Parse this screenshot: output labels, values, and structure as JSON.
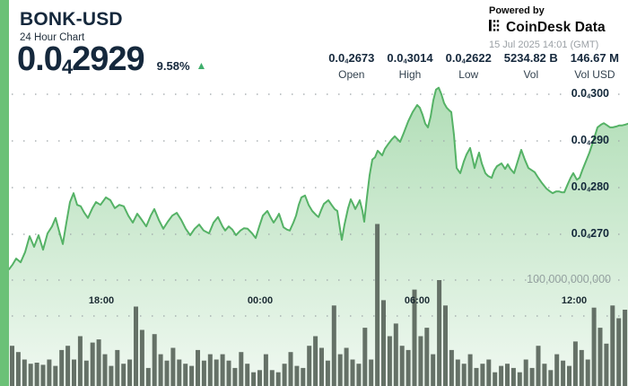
{
  "header": {
    "symbol": "BONK-USD",
    "subtitle": "24 Hour Chart",
    "price": {
      "pre": "0.0",
      "sub": "4",
      "post": "2929"
    },
    "change_percent": "9.58%",
    "change_direction": "up",
    "stats": [
      {
        "value": {
          "pre": "0.0",
          "sub": "4",
          "post": "2673"
        },
        "label": "Open"
      },
      {
        "value": {
          "pre": "0.0",
          "sub": "4",
          "post": "3014"
        },
        "label": "High"
      },
      {
        "value": {
          "pre": "0.0",
          "sub": "4",
          "post": "2622"
        },
        "label": "Low"
      },
      {
        "value": {
          "pre": "5234.82 B"
        },
        "label": "Vol"
      },
      {
        "value": {
          "pre": "146.67 M"
        },
        "label": "Vol USD"
      }
    ],
    "powered_by": {
      "line1": "Powered by",
      "brand": "CoinDesk Data",
      "timestamp": "15 Jul 2025 14:01 (GMT)"
    }
  },
  "colors": {
    "accent_strip": "#6BC177",
    "line": "#55B266",
    "fill": "#67BE72",
    "volume_bar": "#5A665C",
    "grid_dot": "#9FA8AA",
    "text_dark": "#15283C",
    "text_gray": "#93A09F",
    "triangle_up": "#3FAE6C"
  },
  "chart_data": {
    "type": "area",
    "title": "BONK-USD 24 Hour Chart",
    "legend": [],
    "grid": "dotted horizontal",
    "x_axis": {
      "ticks": [
        "18:00",
        "00:00",
        "06:00",
        "12:00"
      ]
    },
    "y_axis": {
      "unit": "price shown as 0.0(4)XXX USD",
      "ticks": [
        {
          "label": {
            "pre": "0.0",
            "sub": "4",
            "post": "300"
          },
          "value": 300
        },
        {
          "label": {
            "pre": "0.0",
            "sub": "4",
            "post": "290"
          },
          "value": 290
        },
        {
          "label": {
            "pre": "0.0",
            "sub": "4",
            "post": "280"
          },
          "value": 280
        },
        {
          "label": {
            "pre": "0.0",
            "sub": "4",
            "post": "270"
          },
          "value": 270
        }
      ]
    },
    "volume_axis_label": "100,000,000,000",
    "price_points": [
      [
        0,
        263.8
      ],
      [
        6,
        262.9
      ],
      [
        10,
        262.5
      ],
      [
        14,
        263.5
      ],
      [
        18,
        264.8
      ],
      [
        23,
        264.0
      ],
      [
        28,
        266.2
      ],
      [
        33,
        269.6
      ],
      [
        38,
        267.3
      ],
      [
        43,
        269.8
      ],
      [
        48,
        266.7
      ],
      [
        53,
        270.2
      ],
      [
        58,
        271.7
      ],
      [
        62,
        273.5
      ],
      [
        66,
        270.6
      ],
      [
        70,
        267.9
      ],
      [
        74,
        272.5
      ],
      [
        78,
        276.9
      ],
      [
        82,
        278.8
      ],
      [
        86,
        276.3
      ],
      [
        90,
        276.0
      ],
      [
        94,
        274.6
      ],
      [
        98,
        273.5
      ],
      [
        103,
        275.6
      ],
      [
        107,
        276.9
      ],
      [
        112,
        276.3
      ],
      [
        118,
        277.9
      ],
      [
        123,
        277.3
      ],
      [
        128,
        275.6
      ],
      [
        133,
        276.3
      ],
      [
        138,
        276.0
      ],
      [
        143,
        274.0
      ],
      [
        148,
        272.5
      ],
      [
        153,
        274.4
      ],
      [
        158,
        273.1
      ],
      [
        163,
        271.7
      ],
      [
        168,
        274.0
      ],
      [
        172,
        275.4
      ],
      [
        177,
        273.1
      ],
      [
        182,
        271.2
      ],
      [
        187,
        272.7
      ],
      [
        192,
        274.0
      ],
      [
        197,
        274.6
      ],
      [
        202,
        273.1
      ],
      [
        207,
        271.2
      ],
      [
        212,
        269.8
      ],
      [
        217,
        271.2
      ],
      [
        222,
        272.1
      ],
      [
        227,
        270.8
      ],
      [
        233,
        270.2
      ],
      [
        238,
        272.5
      ],
      [
        243,
        273.7
      ],
      [
        248,
        271.7
      ],
      [
        251,
        270.8
      ],
      [
        255,
        271.7
      ],
      [
        259,
        271.0
      ],
      [
        263,
        269.8
      ],
      [
        268,
        270.8
      ],
      [
        272,
        271.3
      ],
      [
        276,
        271.2
      ],
      [
        281,
        270.2
      ],
      [
        285,
        269.2
      ],
      [
        289,
        271.7
      ],
      [
        293,
        274.0
      ],
      [
        298,
        275.0
      ],
      [
        302,
        273.5
      ],
      [
        305,
        272.5
      ],
      [
        309,
        273.7
      ],
      [
        311,
        274.4
      ],
      [
        314,
        272.7
      ],
      [
        316,
        271.5
      ],
      [
        320,
        271.0
      ],
      [
        323,
        270.8
      ],
      [
        327,
        272.5
      ],
      [
        330,
        274.0
      ],
      [
        333,
        276.3
      ],
      [
        336,
        277.9
      ],
      [
        340,
        278.3
      ],
      [
        344,
        276.3
      ],
      [
        348,
        275.0
      ],
      [
        352,
        274.2
      ],
      [
        355,
        273.7
      ],
      [
        358,
        275.2
      ],
      [
        361,
        276.5
      ],
      [
        366,
        277.3
      ],
      [
        370,
        276.2
      ],
      [
        373,
        275.4
      ],
      [
        376,
        275.0
      ],
      [
        379,
        271.2
      ],
      [
        381,
        268.8
      ],
      [
        384,
        272.1
      ],
      [
        388,
        275.6
      ],
      [
        391,
        277.5
      ],
      [
        394,
        276.3
      ],
      [
        396,
        275.4
      ],
      [
        399,
        276.5
      ],
      [
        401,
        277.3
      ],
      [
        404,
        275.0
      ],
      [
        406,
        272.7
      ],
      [
        409,
        277.9
      ],
      [
        412,
        282.7
      ],
      [
        415,
        286.0
      ],
      [
        418,
        286.5
      ],
      [
        421,
        287.9
      ],
      [
        424,
        287.3
      ],
      [
        426,
        286.9
      ],
      [
        429,
        288.3
      ],
      [
        433,
        289.4
      ],
      [
        437,
        290.4
      ],
      [
        440,
        291.0
      ],
      [
        443,
        290.4
      ],
      [
        446,
        289.8
      ],
      [
        450,
        291.7
      ],
      [
        455,
        294.2
      ],
      [
        460,
        296.2
      ],
      [
        465,
        297.7
      ],
      [
        468,
        297.1
      ],
      [
        471,
        295.6
      ],
      [
        474,
        293.7
      ],
      [
        477,
        292.9
      ],
      [
        480,
        295.2
      ],
      [
        483,
        298.7
      ],
      [
        486,
        301.0
      ],
      [
        489,
        301.4
      ],
      [
        492,
        300.0
      ],
      [
        495,
        298.1
      ],
      [
        498,
        297.1
      ],
      [
        501,
        296.5
      ],
      [
        503,
        296.2
      ],
      [
        506,
        291.3
      ],
      [
        509,
        284.2
      ],
      [
        513,
        283.1
      ],
      [
        517,
        285.6
      ],
      [
        520,
        287.1
      ],
      [
        524,
        288.5
      ],
      [
        527,
        286.0
      ],
      [
        529,
        284.2
      ],
      [
        532,
        286.3
      ],
      [
        534,
        287.5
      ],
      [
        537,
        285.2
      ],
      [
        541,
        283.1
      ],
      [
        544,
        282.5
      ],
      [
        548,
        282.1
      ],
      [
        551,
        283.7
      ],
      [
        554,
        284.6
      ],
      [
        559,
        285.2
      ],
      [
        563,
        284.0
      ],
      [
        566,
        285.0
      ],
      [
        569,
        284.0
      ],
      [
        573,
        283.1
      ],
      [
        577,
        285.6
      ],
      [
        581,
        288.1
      ],
      [
        585,
        286.0
      ],
      [
        589,
        284.2
      ],
      [
        593,
        283.7
      ],
      [
        596,
        283.3
      ],
      [
        600,
        282.1
      ],
      [
        604,
        281.0
      ],
      [
        609,
        279.8
      ],
      [
        613,
        279.2
      ],
      [
        616,
        278.8
      ],
      [
        620,
        279.2
      ],
      [
        623,
        279.2
      ],
      [
        626,
        279.0
      ],
      [
        629,
        279.0
      ],
      [
        633,
        280.8
      ],
      [
        636,
        282.1
      ],
      [
        639,
        283.1
      ],
      [
        643,
        281.7
      ],
      [
        646,
        282.1
      ],
      [
        649,
        283.7
      ],
      [
        653,
        285.6
      ],
      [
        657,
        287.5
      ],
      [
        661,
        289.8
      ],
      [
        666,
        292.9
      ],
      [
        670,
        293.5
      ],
      [
        673,
        293.8
      ],
      [
        677,
        293.3
      ],
      [
        680,
        292.9
      ],
      [
        683,
        292.9
      ],
      [
        687,
        293.1
      ],
      [
        690,
        293.3
      ],
      [
        693,
        293.3
      ],
      [
        697,
        293.5
      ],
      [
        700,
        293.7
      ]
    ],
    "volume_bars_billions": [
      38,
      32,
      25,
      21,
      22,
      20,
      25,
      19,
      34,
      38,
      25,
      47,
      24,
      41,
      44,
      30,
      19,
      34,
      21,
      25,
      75,
      53,
      17,
      49,
      30,
      24,
      36,
      25,
      21,
      19,
      34,
      24,
      30,
      25,
      30,
      24,
      17,
      32,
      21,
      13,
      15,
      30,
      15,
      13,
      21,
      32,
      19,
      17,
      38,
      47,
      36,
      24,
      76,
      30,
      36,
      25,
      21,
      55,
      25,
      153,
      81,
      47,
      59,
      38,
      34,
      91,
      47,
      55,
      30,
      100,
      76,
      34,
      25,
      21,
      30,
      17,
      21,
      25,
      13,
      19,
      21,
      17,
      13,
      25,
      17,
      38,
      21,
      15,
      30,
      24,
      19,
      42,
      34,
      25,
      74,
      55,
      40,
      76,
      64,
      72
    ]
  }
}
